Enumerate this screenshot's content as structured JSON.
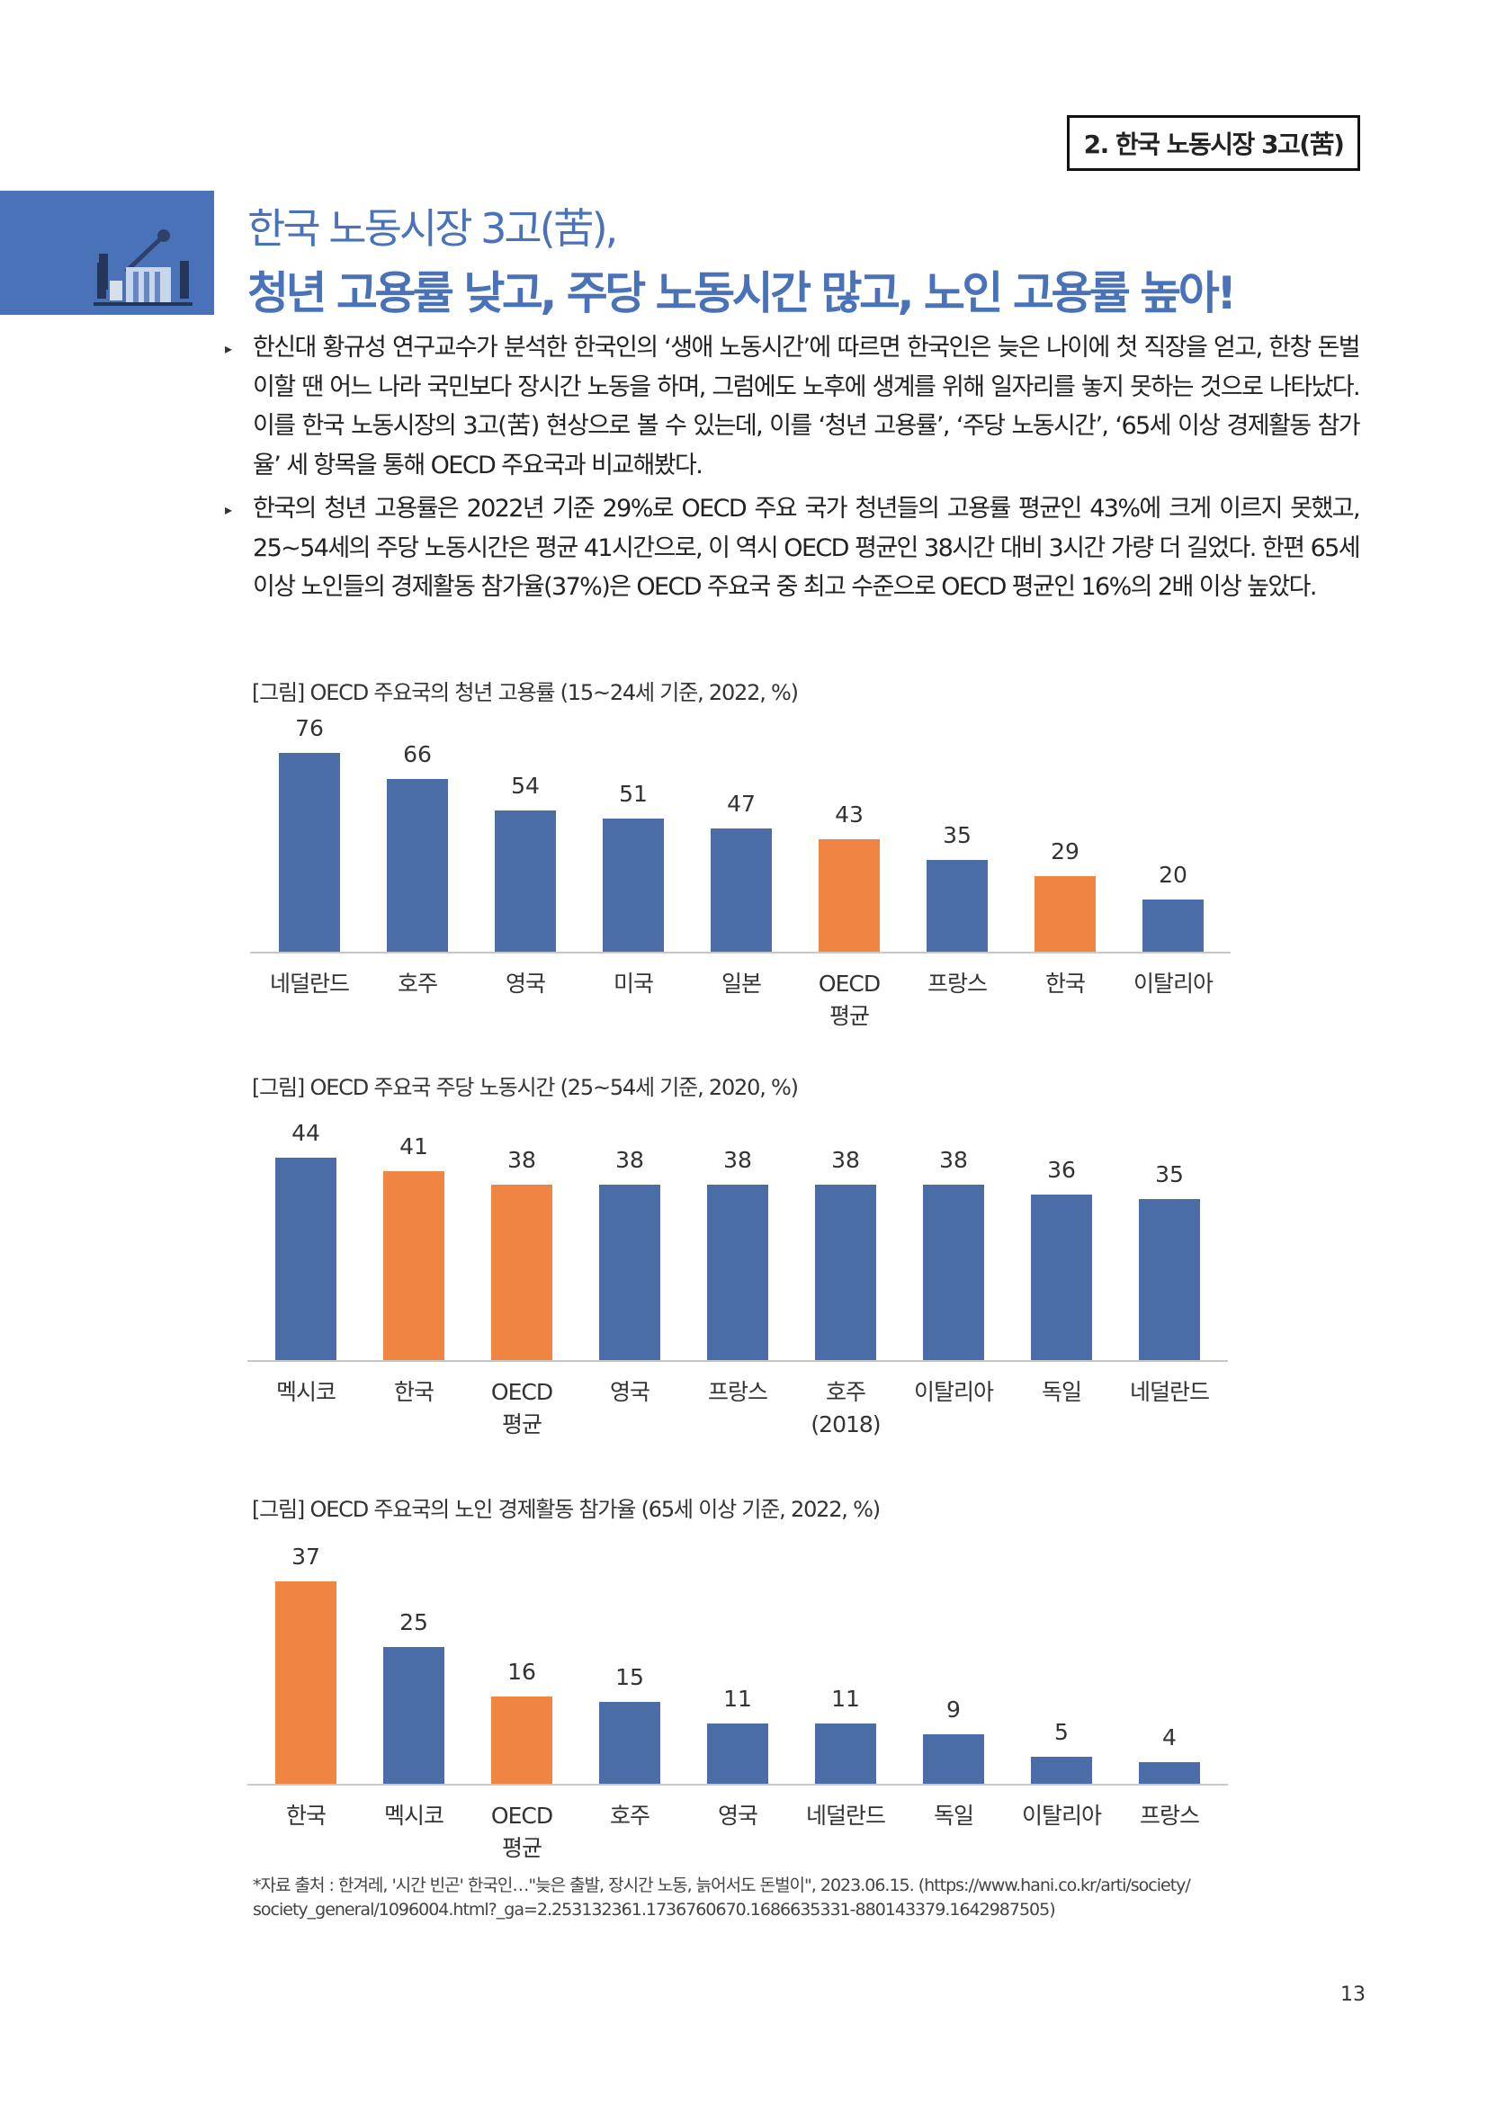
{
  "header": {
    "section_tag": "2. 한국 노동시장 3고(苦)"
  },
  "title": {
    "line1": "한국 노동시장 3고(苦),",
    "line2": "청년 고용률 낮고, 주당 노동시간 많고, 노인 고용률 높아!"
  },
  "paragraphs": [
    "한신대 황규성 연구교수가 분석한 한국인의 ‘생애 노동시간’에 따르면 한국인은 늦은 나이에 첫 직장을 얻고, 한창 돈벌이할 땐 어느 나라 국민보다 장시간 노동을 하며, 그럼에도 노후에 생계를 위해 일자리를 놓지 못하는 것으로 나타났다. 이를 한국 노동시장의 3고(苦) 현상으로 볼 수 있는데, 이를 ‘청년 고용률’, ‘주당 노동시간’, ‘65세 이상 경제활동 참가율’ 세 항목을 통해 OECD 주요국과 비교해봤다.",
    "한국의 청년 고용률은 2022년 기준 29%로 OECD 주요 국가 청년들의 고용률 평균인 43%에 크게 이르지 못했고, 25~54세의 주당 노동시간은 평균 41시간으로, 이 역시 OECD 평균인 38시간 대비 3시간 가량 더 길었다. 한편 65세 이상 노인들의 경제활동 참가율(37%)은 OECD 주요국 중 최고 수준으로 OECD 평균인 16%의 2배 이상 높았다."
  ],
  "bullet_glyph": "▸",
  "colors": {
    "blue": "#4a6ca7",
    "orange": "#f08443",
    "title_blue": "#4a72b8"
  },
  "chart_data": [
    {
      "type": "bar",
      "title": "[그림] OECD 주요국의 청년 고용률 (15~24세 기준, 2022, %)",
      "categories": [
        "네덜란드",
        "호주",
        "영국",
        "미국",
        "일본",
        "OECD\n평균",
        "프랑스",
        "한국",
        "이탈리아"
      ],
      "values": [
        76,
        66,
        54,
        51,
        47,
        43,
        35,
        29,
        20
      ],
      "highlight": [
        false,
        false,
        false,
        false,
        false,
        true,
        false,
        true,
        false
      ],
      "xlabel": "",
      "ylabel": "",
      "ylim": [
        0,
        76
      ],
      "grid": false
    },
    {
      "type": "bar",
      "title": "[그림] OECD 주요국 주당 노동시간 (25~54세 기준, 2020, %)",
      "categories": [
        "멕시코",
        "한국",
        "OECD\n평균",
        "영국",
        "프랑스",
        "호주\n(2018)",
        "이탈리아",
        "독일",
        "네덜란드"
      ],
      "values": [
        44,
        41,
        38,
        38,
        38,
        38,
        38,
        36,
        35
      ],
      "highlight": [
        false,
        true,
        true,
        false,
        false,
        false,
        false,
        false,
        false
      ],
      "xlabel": "",
      "ylabel": "",
      "ylim": [
        0,
        44
      ],
      "grid": false
    },
    {
      "type": "bar",
      "title": "[그림] OECD 주요국의 노인 경제활동 참가율 (65세 이상 기준, 2022, %)",
      "categories": [
        "한국",
        "멕시코",
        "OECD\n평균",
        "호주",
        "영국",
        "네덜란드",
        "독일",
        "이탈리아",
        "프랑스"
      ],
      "values": [
        37,
        25,
        16,
        15,
        11,
        11,
        9,
        5,
        4
      ],
      "highlight": [
        true,
        false,
        true,
        false,
        false,
        false,
        false,
        false,
        false
      ],
      "xlabel": "",
      "ylabel": "",
      "ylim": [
        0,
        37
      ],
      "grid": false
    }
  ],
  "source": {
    "line1": "*자료 출처 : 한겨레, '시간 빈곤' 한국인…\"늦은 출발, 장시간 노동, 늙어서도 돈벌이\", 2023.06.15. (https://www.hani.co.kr/arti/society/",
    "line2": "society_general/1096004.html?_ga=2.253132361.1736760670.1686635331-880143379.1642987505)"
  },
  "page_number": "13"
}
